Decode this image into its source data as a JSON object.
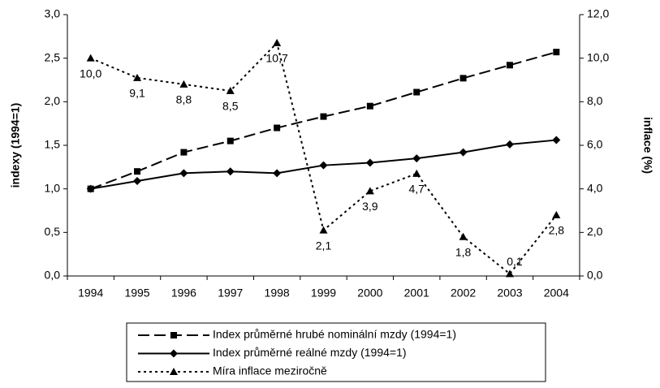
{
  "chart_data": {
    "type": "line",
    "categories": [
      "1994",
      "1995",
      "1996",
      "1997",
      "1998",
      "1999",
      "2000",
      "2001",
      "2002",
      "2003",
      "2004"
    ],
    "y_label": "indexy (1994=1)",
    "y2_label": "inflace (%)",
    "ylim": [
      0,
      3
    ],
    "yticks": [
      {
        "value": 0,
        "label": "0,0"
      },
      {
        "value": 0.5,
        "label": "0,5"
      },
      {
        "value": 1,
        "label": "1,0"
      },
      {
        "value": 1.5,
        "label": "1,5"
      },
      {
        "value": 2,
        "label": "2,0"
      },
      {
        "value": 2.5,
        "label": "2,5"
      },
      {
        "value": 3,
        "label": "3,0"
      }
    ],
    "y2lim": [
      0,
      12
    ],
    "y2ticks": [
      {
        "value": 0,
        "label": "0,0"
      },
      {
        "value": 2,
        "label": "2,0"
      },
      {
        "value": 4,
        "label": "4,0"
      },
      {
        "value": 6,
        "label": "6,0"
      },
      {
        "value": 8,
        "label": "8,0"
      },
      {
        "value": 10,
        "label": "10,0"
      },
      {
        "value": 12,
        "label": "12,0"
      }
    ],
    "grid": false,
    "series": [
      {
        "name": "Index průměrné hrubé nominální mzdy (1994=1)",
        "color": "#000000",
        "line_style": "dashed",
        "marker": "square",
        "values": [
          1.0,
          1.2,
          1.42,
          1.55,
          1.7,
          1.83,
          1.95,
          2.11,
          2.27,
          2.42,
          2.57
        ]
      },
      {
        "name": "Index průměrné reálné mzdy (1994=1)",
        "color": "#000000",
        "line_style": "solid",
        "marker": "diamond",
        "values": [
          1.0,
          1.09,
          1.18,
          1.2,
          1.18,
          1.27,
          1.3,
          1.35,
          1.42,
          1.51,
          1.56
        ]
      },
      {
        "name": "Míra inflace meziročně",
        "color": "#000000",
        "line_style": "dotted",
        "marker": "triangle",
        "axis": "y2",
        "values": [
          10.0,
          9.1,
          8.8,
          8.5,
          10.7,
          2.1,
          3.9,
          4.7,
          1.8,
          0.1,
          2.8
        ],
        "value_labels": [
          "10,0",
          "9,1",
          "8,8",
          "8,5",
          "10,7",
          "2,1",
          "3,9",
          "4,7",
          "1,8",
          "0,1",
          "2,8"
        ]
      }
    ]
  }
}
